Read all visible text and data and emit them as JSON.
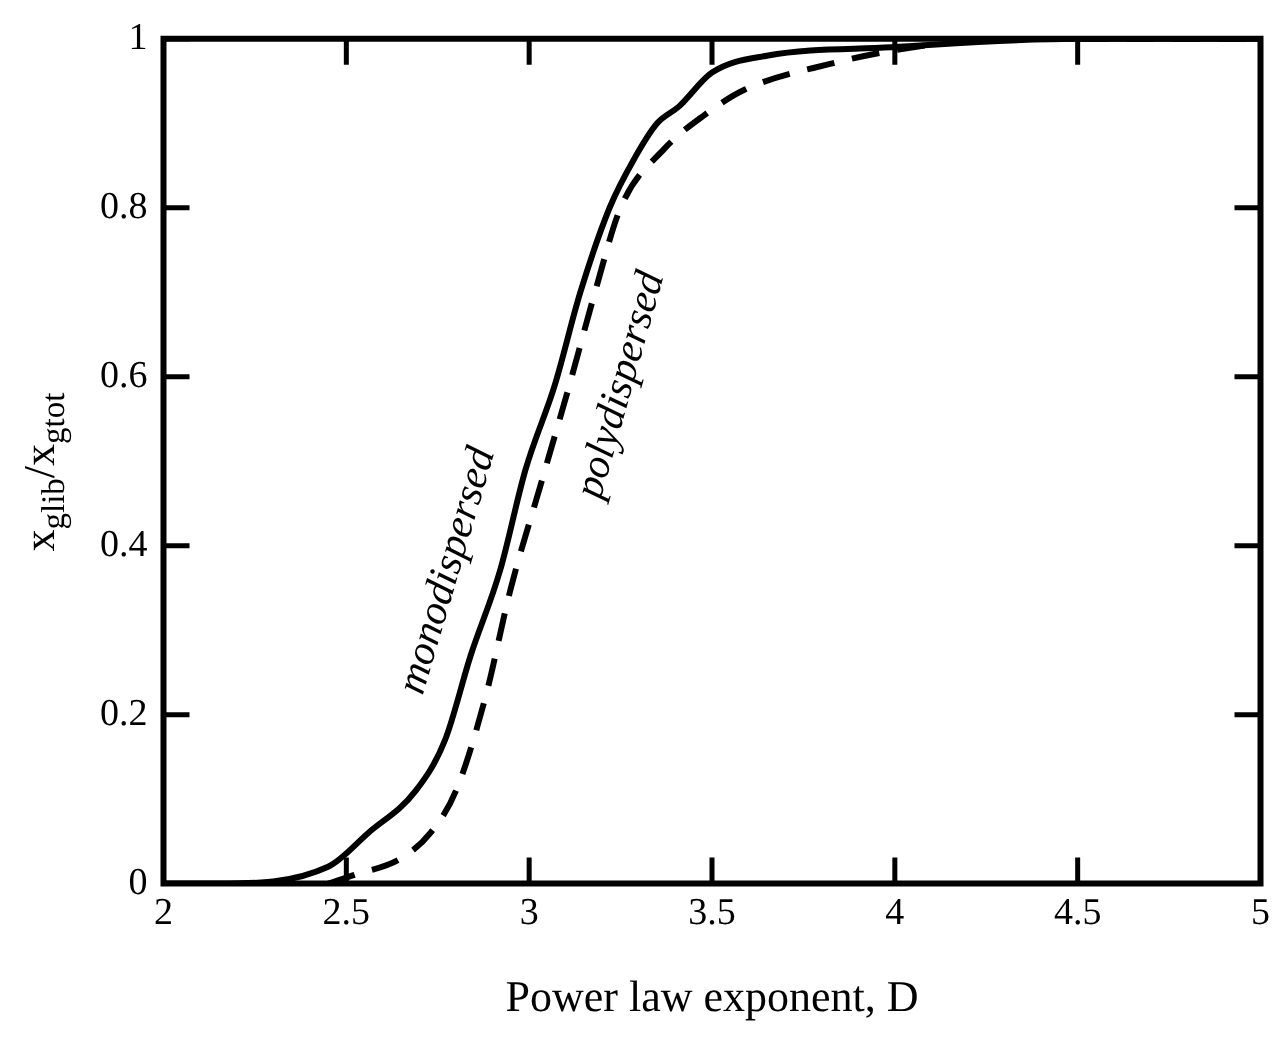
{
  "chart_data": {
    "type": "line",
    "xlabel": "Power law exponent, D",
    "ylabel": "x$_{g}$$_{lib}$/x$_{g}$$_{tot}$",
    "xlim": [
      2,
      5
    ],
    "xticks": [
      2,
      2.5,
      3,
      3.5,
      4,
      4.5,
      5
    ],
    "ylim": [
      0,
      1
    ],
    "yticks": [
      0,
      0.2,
      0.4,
      0.6,
      0.8,
      1
    ],
    "grid": false,
    "legend": false,
    "marker": "none",
    "series": [
      {
        "name": "monodispersed",
        "color": "#000000",
        "line_style": "solid",
        "x": [
          2,
          2.15,
          2.45,
          2.56,
          2.69,
          2.77,
          2.84,
          2.92,
          2.99,
          3.07,
          3.14,
          3.22,
          3.29,
          3.35,
          3.41,
          3.5,
          3.65,
          3.99,
          4.5,
          5
        ],
        "values": [
          0,
          0,
          0.02,
          0.06,
          0.11,
          0.17,
          0.27,
          0.37,
          0.49,
          0.59,
          0.7,
          0.8,
          0.86,
          0.9,
          0.92,
          0.96,
          0.98,
          0.99,
          1,
          1
        ]
      },
      {
        "name": "polydispersed",
        "color": "#000000",
        "line_style": "dashed",
        "x": [
          2.45,
          2.52,
          2.65,
          2.73,
          2.8,
          2.88,
          2.95,
          3.03,
          3.11,
          3.18,
          3.25,
          3.37,
          3.48,
          3.59,
          3.82,
          4.05,
          4.29,
          5
        ],
        "values": [
          0,
          0.01,
          0.03,
          0.06,
          0.11,
          0.22,
          0.35,
          0.47,
          0.59,
          0.7,
          0.8,
          0.87,
          0.91,
          0.94,
          0.97,
          0.99,
          1,
          1
        ]
      }
    ]
  }
}
